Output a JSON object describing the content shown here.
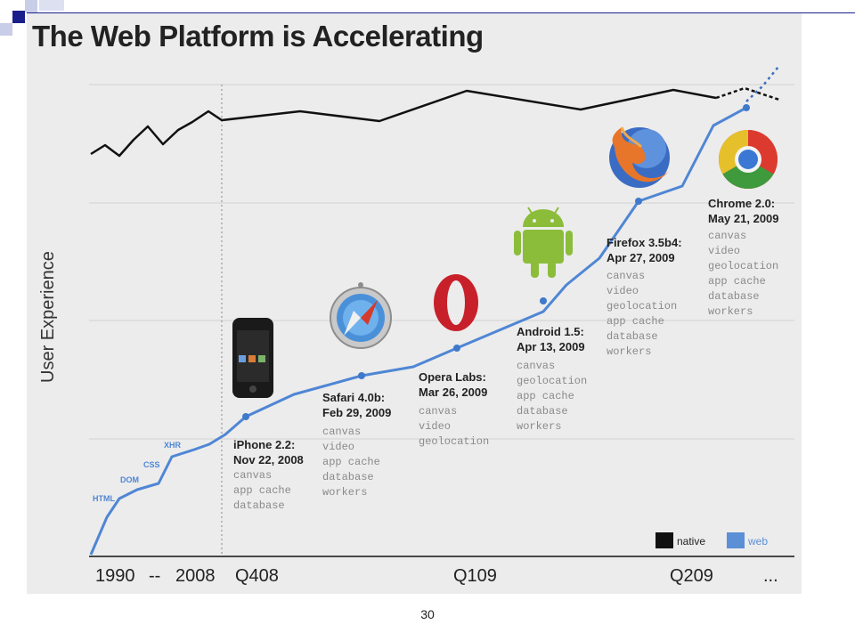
{
  "title": "The Web Platform is Accelerating",
  "page_number": "30",
  "chart_data": {
    "type": "line",
    "title": "The Web Platform is Accelerating",
    "ylabel": "User Experience",
    "xlabel": "",
    "x_ticks": [
      "1990",
      "--",
      "2008",
      "Q408",
      "Q109",
      "Q209",
      "..."
    ],
    "legend": [
      {
        "name": "native",
        "color": "#111111"
      },
      {
        "name": "web",
        "color": "#5b8fd6"
      }
    ],
    "legend_position": "bottom-right",
    "grid": true,
    "series": [
      {
        "name": "native",
        "color": "#111111"
      },
      {
        "name": "web",
        "color": "#4f86d4"
      }
    ],
    "early_labels": [
      "HTML",
      "DOM",
      "CSS",
      "XHR"
    ],
    "browsers": [
      {
        "name": "iPhone 2.2:",
        "date": "Nov 22, 2008",
        "features": [
          "canvas",
          "app cache",
          "database"
        ]
      },
      {
        "name": "Safari 4.0b:",
        "date": "Feb 29, 2009",
        "features": [
          "canvas",
          "video",
          "app cache",
          "database",
          "workers"
        ]
      },
      {
        "name": "Opera Labs:",
        "date": "Mar 26, 2009",
        "features": [
          "canvas",
          "video",
          "geolocation"
        ]
      },
      {
        "name": "Android 1.5:",
        "date": "Apr 13, 2009",
        "features": [
          "canvas",
          "geolocation",
          "app cache",
          "database",
          "workers"
        ]
      },
      {
        "name": "Firefox 3.5b4:",
        "date": "Apr 27, 2009",
        "features": [
          "canvas",
          "video",
          "geolocation",
          "app cache",
          "database",
          "workers"
        ]
      },
      {
        "name": "Chrome 2.0:",
        "date": "May 21, 2009",
        "features": [
          "canvas",
          "video",
          "geolocation",
          "app cache",
          "database",
          "workers"
        ]
      }
    ],
    "icons": [
      "iphone-icon",
      "safari-icon",
      "opera-icon",
      "android-icon",
      "firefox-icon",
      "chrome-icon"
    ]
  }
}
